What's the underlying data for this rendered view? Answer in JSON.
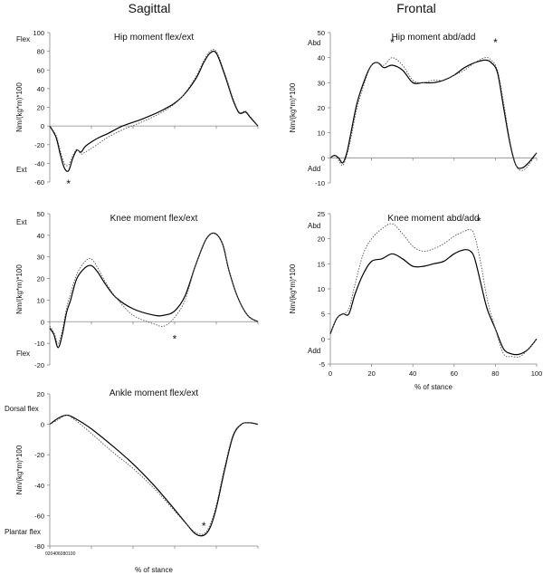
{
  "columns": {
    "left": "Sagittal",
    "right": "Frontal"
  },
  "chart_data": [
    {
      "id": "hip-sag",
      "type": "line",
      "title": "Hip moment flex/ext",
      "ylabel": "Nm/(kg*m)*100",
      "yticks": [
        "100",
        "80",
        "60",
        "40",
        "20",
        "0",
        "-20",
        "-40",
        "-60"
      ],
      "ylim": [
        -60,
        100
      ],
      "upper_label": "Flex",
      "lower_label": "Ext",
      "x": [
        0,
        3,
        5,
        7,
        9,
        11,
        13,
        15,
        17,
        20,
        24,
        28,
        35,
        45,
        55,
        63,
        70,
        74,
        77,
        80,
        84,
        88,
        91,
        94,
        96,
        100
      ],
      "series": [
        {
          "name": "solid",
          "values": [
            0,
            -12,
            -30,
            -45,
            -48,
            -35,
            -26,
            -28,
            -22,
            -17,
            -12,
            -8,
            0,
            8,
            18,
            30,
            50,
            68,
            78,
            78,
            55,
            28,
            14,
            15,
            10,
            0
          ]
        },
        {
          "name": "dotted",
          "values": [
            0,
            -10,
            -26,
            -40,
            -42,
            -32,
            -25,
            -30,
            -28,
            -24,
            -18,
            -12,
            -4,
            5,
            16,
            30,
            52,
            70,
            80,
            80,
            57,
            30,
            15,
            16,
            11,
            0
          ]
        }
      ],
      "markers": [
        {
          "x": 9,
          "y": -62,
          "text": "*"
        }
      ]
    },
    {
      "id": "knee-sag",
      "type": "line",
      "title": "Knee moment flex/ext",
      "ylabel": "Nm/(kg*m)*100",
      "yticks": [
        "50",
        "40",
        "30",
        "20",
        "10",
        "0",
        "-10",
        "-20"
      ],
      "ylim": [
        -20,
        50
      ],
      "upper_label": "Ext",
      "lower_label": "Flex",
      "x": [
        0,
        2,
        4,
        6,
        8,
        10,
        13,
        17,
        20,
        23,
        27,
        32,
        40,
        50,
        55,
        60,
        65,
        70,
        75,
        79,
        83,
        86,
        90,
        95,
        100
      ],
      "series": [
        {
          "name": "solid",
          "values": [
            -3,
            -6,
            -12,
            -6,
            4,
            10,
            20,
            25,
            26,
            23,
            17,
            11,
            6,
            3,
            3,
            5,
            12,
            26,
            38,
            41,
            36,
            24,
            12,
            3,
            0
          ]
        },
        {
          "name": "dotted",
          "values": [
            -2,
            -5,
            -10,
            -4,
            6,
            13,
            22,
            28,
            29,
            25,
            18,
            11,
            3,
            -1,
            -2,
            2,
            10,
            26,
            38,
            41,
            36,
            24,
            12,
            3,
            0
          ]
        }
      ],
      "markers": [
        {
          "x": 60,
          "y": -8,
          "text": "*"
        }
      ]
    },
    {
      "id": "ankle-sag",
      "type": "line",
      "title": "Ankle moment flex/ext",
      "ylabel": "Nm/(kg*m)*100",
      "yticks": [
        "20",
        "0",
        "-20",
        "-40",
        "-60",
        "-80"
      ],
      "ylim": [
        -80,
        20
      ],
      "upper_label": "Dorsal flex",
      "lower_label": "Plantar flex",
      "xlabel": "% of stance",
      "xtick_string": "020406080100",
      "x": [
        0,
        4,
        8,
        12,
        20,
        30,
        40,
        50,
        60,
        66,
        70,
        74,
        77,
        80,
        84,
        88,
        92,
        96,
        100
      ],
      "series": [
        {
          "name": "solid",
          "values": [
            0,
            4,
            6,
            4,
            -3,
            -14,
            -26,
            -40,
            -56,
            -66,
            -72,
            -73,
            -68,
            -55,
            -30,
            -8,
            0,
            1,
            0
          ]
        },
        {
          "name": "dotted",
          "values": [
            0,
            3,
            6,
            3,
            -6,
            -18,
            -29,
            -42,
            -57,
            -66,
            -71,
            -72,
            -66,
            -53,
            -28,
            -7,
            0,
            1,
            0
          ]
        }
      ],
      "markers": [
        {
          "x": 74,
          "y": -67,
          "text": "*"
        }
      ]
    },
    {
      "id": "hip-front",
      "type": "line",
      "title": "Hip moment abd/add",
      "ylabel": "Nm/(kg*m)*100",
      "yticks": [
        "50",
        "40",
        "30",
        "20",
        "10",
        "0",
        "-10"
      ],
      "ylim": [
        -10,
        50
      ],
      "upper_label": "Abd",
      "lower_label": "Add",
      "x": [
        0,
        2,
        4,
        6,
        8,
        10,
        13,
        17,
        20,
        23,
        26,
        30,
        35,
        40,
        45,
        50,
        55,
        60,
        65,
        70,
        75,
        78,
        81,
        84,
        87,
        90,
        93,
        96,
        100
      ],
      "series": [
        {
          "name": "solid",
          "values": [
            0,
            1,
            0,
            -2,
            2,
            10,
            22,
            32,
            37,
            38,
            36,
            37,
            35,
            30,
            30,
            30,
            31,
            33,
            36,
            38,
            39,
            38,
            34,
            20,
            6,
            -3,
            -4,
            -2,
            2
          ]
        },
        {
          "name": "dotted",
          "values": [
            0,
            1,
            -1,
            -3,
            1,
            8,
            20,
            31,
            37,
            38,
            37,
            40,
            37,
            31,
            30,
            31,
            31,
            33,
            35,
            38,
            40,
            39,
            35,
            22,
            7,
            -3,
            -5,
            -3,
            2
          ]
        }
      ],
      "markers": [
        {
          "x": 30,
          "y": 46,
          "text": "*"
        },
        {
          "x": 80,
          "y": 46,
          "text": "*"
        }
      ]
    },
    {
      "id": "knee-front",
      "type": "line",
      "title": "Knee moment abd/add",
      "ylabel": "Nm/(kg*m)*100",
      "yticks": [
        "25",
        "20",
        "15",
        "10",
        "5",
        "0",
        "-5"
      ],
      "xticks": [
        "0",
        "20",
        "40",
        "60",
        "80",
        "100"
      ],
      "ylim": [
        -5,
        25
      ],
      "xlim": [
        0,
        100
      ],
      "upper_label": "Abd",
      "lower_label": "Add",
      "xlabel": "% of stance",
      "x": [
        0,
        3,
        6,
        9,
        12,
        16,
        20,
        25,
        30,
        35,
        40,
        45,
        50,
        55,
        60,
        65,
        68,
        70,
        73,
        76,
        80,
        84,
        88,
        92,
        96,
        100
      ],
      "series": [
        {
          "name": "solid",
          "values": [
            1,
            4,
            5,
            5,
            9,
            13,
            15.5,
            16,
            17,
            16,
            14.5,
            14.5,
            15,
            15.5,
            17,
            17.8,
            17.5,
            16,
            11,
            6,
            2,
            -2,
            -3,
            -3,
            -2,
            0
          ]
        },
        {
          "name": "dotted",
          "values": [
            1,
            4,
            5,
            6,
            11,
            17,
            20,
            22,
            23,
            21,
            18.5,
            17.5,
            18,
            19,
            20.5,
            21.5,
            21.8,
            20.5,
            15,
            8,
            2,
            -3,
            -3.5,
            -3.5,
            -2,
            0
          ]
        }
      ],
      "markers": [
        {
          "x": 72,
          "y": 23.5,
          "text": "*"
        }
      ]
    }
  ]
}
